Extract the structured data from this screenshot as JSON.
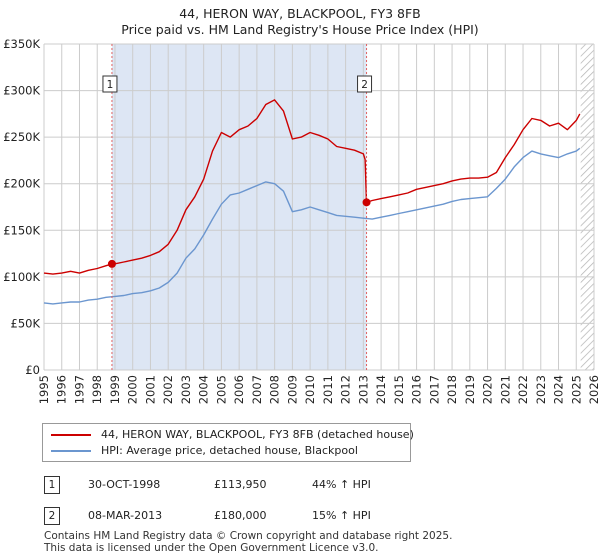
{
  "header": {
    "title": "44, HERON WAY, BLACKPOOL, FY3 8FB",
    "subtitle": "Price paid vs. HM Land Registry's House Price Index (HPI)"
  },
  "colors": {
    "property_line": "#cc0000",
    "hpi_line": "#6b96cf",
    "shade": "#dde6f4",
    "marker_line": "#e06060",
    "grid": "#cccccc"
  },
  "chart_data": {
    "type": "line",
    "title": "Price paid vs. HM Land Registry's House Price Index (HPI)",
    "xlim": [
      1995,
      2026
    ],
    "ylim": [
      0,
      350000
    ],
    "x_ticks": [
      "1995",
      "1996",
      "1997",
      "1998",
      "1999",
      "2000",
      "2001",
      "2002",
      "2003",
      "2004",
      "2005",
      "2006",
      "2007",
      "2008",
      "2009",
      "2010",
      "2011",
      "2012",
      "2013",
      "2014",
      "2015",
      "2016",
      "2017",
      "2018",
      "2019",
      "2020",
      "2021",
      "2022",
      "2023",
      "2024",
      "2025",
      "2026"
    ],
    "y_ticks": [
      {
        "value": 0,
        "label": "£0"
      },
      {
        "value": 50000,
        "label": "£50K"
      },
      {
        "value": 100000,
        "label": "£100K"
      },
      {
        "value": 150000,
        "label": "£150K"
      },
      {
        "value": 200000,
        "label": "£200K"
      },
      {
        "value": 250000,
        "label": "£250K"
      },
      {
        "value": 300000,
        "label": "£300K"
      },
      {
        "value": 350000,
        "label": "£350K"
      }
    ],
    "shaded_range": [
      1998.83,
      2013.18
    ],
    "hatched_from": 2025.25,
    "series": [
      {
        "name": "44, HERON WAY, BLACKPOOL, FY3 8FB (detached house)",
        "x": [
          1995.0,
          1995.5,
          1996.0,
          1996.5,
          1997.0,
          1997.5,
          1998.0,
          1998.5,
          1998.83,
          1999.0,
          1999.5,
          2000.0,
          2000.5,
          2001.0,
          2001.5,
          2002.0,
          2002.5,
          2003.0,
          2003.5,
          2004.0,
          2004.5,
          2005.0,
          2005.5,
          2006.0,
          2006.5,
          2007.0,
          2007.5,
          2008.0,
          2008.5,
          2009.0,
          2009.5,
          2010.0,
          2010.5,
          2011.0,
          2011.5,
          2012.0,
          2012.5,
          2013.0,
          2013.1,
          2013.18,
          2013.5,
          2014.0,
          2014.5,
          2015.0,
          2015.5,
          2016.0,
          2016.5,
          2017.0,
          2017.5,
          2018.0,
          2018.5,
          2019.0,
          2019.5,
          2020.0,
          2020.5,
          2021.0,
          2021.5,
          2022.0,
          2022.5,
          2023.0,
          2023.5,
          2024.0,
          2024.5,
          2025.0,
          2025.2
        ],
        "values": [
          104000,
          103000,
          104000,
          106000,
          104000,
          107000,
          109000,
          112000,
          113950,
          114000,
          116000,
          118000,
          120000,
          123000,
          127000,
          135000,
          150000,
          172000,
          186000,
          205000,
          235000,
          255000,
          250000,
          258000,
          262000,
          270000,
          285000,
          290000,
          278000,
          248000,
          250000,
          255000,
          252000,
          248000,
          240000,
          238000,
          236000,
          232000,
          226000,
          180000,
          182000,
          184000,
          186000,
          188000,
          190000,
          194000,
          196000,
          198000,
          200000,
          203000,
          205000,
          206000,
          206000,
          207000,
          212000,
          228000,
          242000,
          258000,
          270000,
          268000,
          262000,
          265000,
          258000,
          268000,
          275000
        ]
      },
      {
        "name": "HPI: Average price, detached house, Blackpool",
        "x": [
          1995.0,
          1995.5,
          1996.0,
          1996.5,
          1997.0,
          1997.5,
          1998.0,
          1998.5,
          1999.0,
          1999.5,
          2000.0,
          2000.5,
          2001.0,
          2001.5,
          2002.0,
          2002.5,
          2003.0,
          2003.5,
          2004.0,
          2004.5,
          2005.0,
          2005.5,
          2006.0,
          2006.5,
          2007.0,
          2007.5,
          2008.0,
          2008.5,
          2009.0,
          2009.5,
          2010.0,
          2010.5,
          2011.0,
          2011.5,
          2012.0,
          2012.5,
          2013.0,
          2013.5,
          2014.0,
          2014.5,
          2015.0,
          2015.5,
          2016.0,
          2016.5,
          2017.0,
          2017.5,
          2018.0,
          2018.5,
          2019.0,
          2019.5,
          2020.0,
          2020.5,
          2021.0,
          2021.5,
          2022.0,
          2022.5,
          2023.0,
          2023.5,
          2024.0,
          2024.5,
          2025.0,
          2025.2
        ],
        "values": [
          72000,
          71000,
          72000,
          73000,
          73000,
          75000,
          76000,
          78000,
          79000,
          80000,
          82000,
          83000,
          85000,
          88000,
          94000,
          104000,
          120000,
          130000,
          145000,
          162000,
          178000,
          188000,
          190000,
          194000,
          198000,
          202000,
          200000,
          192000,
          170000,
          172000,
          175000,
          172000,
          169000,
          166000,
          165000,
          164000,
          163000,
          162000,
          164000,
          166000,
          168000,
          170000,
          172000,
          174000,
          176000,
          178000,
          181000,
          183000,
          184000,
          185000,
          186000,
          195000,
          205000,
          218000,
          228000,
          235000,
          232000,
          230000,
          228000,
          232000,
          235000,
          238000
        ]
      }
    ],
    "markers": [
      {
        "label": "1",
        "x": 1998.83,
        "y": 113950
      },
      {
        "label": "2",
        "x": 2013.18,
        "y": 180000
      }
    ]
  },
  "legend": {
    "property_label": "44, HERON WAY, BLACKPOOL, FY3 8FB (detached house)",
    "hpi_label": "HPI: Average price, detached house, Blackpool"
  },
  "transactions": [
    {
      "num": "1",
      "date": "30-OCT-1998",
      "price": "£113,950",
      "hpi": "44% ↑ HPI"
    },
    {
      "num": "2",
      "date": "08-MAR-2013",
      "price": "£180,000",
      "hpi": "15% ↑ HPI"
    }
  ],
  "footer": {
    "line1": "Contains HM Land Registry data © Crown copyright and database right 2025.",
    "line2": "This data is licensed under the Open Government Licence v3.0."
  }
}
